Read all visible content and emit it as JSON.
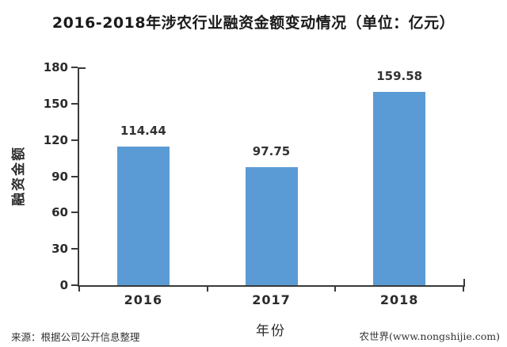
{
  "chart_data": {
    "type": "bar",
    "title": "2016-2018年涉农行业融资金额变动情况（单位：亿元）",
    "categories": [
      "2016",
      "2017",
      "2018"
    ],
    "values": [
      114.44,
      97.75,
      159.58
    ],
    "value_labels": [
      "114.44",
      "97.75",
      "159.58"
    ],
    "xlabel": "年份",
    "ylabel": "融资金额",
    "ylim": [
      0,
      180
    ],
    "yticks": [
      0,
      30,
      60,
      90,
      120,
      150,
      180
    ],
    "grid": false,
    "legend": "none",
    "bar_color": "#5B9BD5",
    "axis_color": "#3a3a3a",
    "text_color": "#333333"
  },
  "footer": {
    "source": "来源：根据公司公开信息整理",
    "watermark": "农世界(www.nongshijie.com)"
  }
}
